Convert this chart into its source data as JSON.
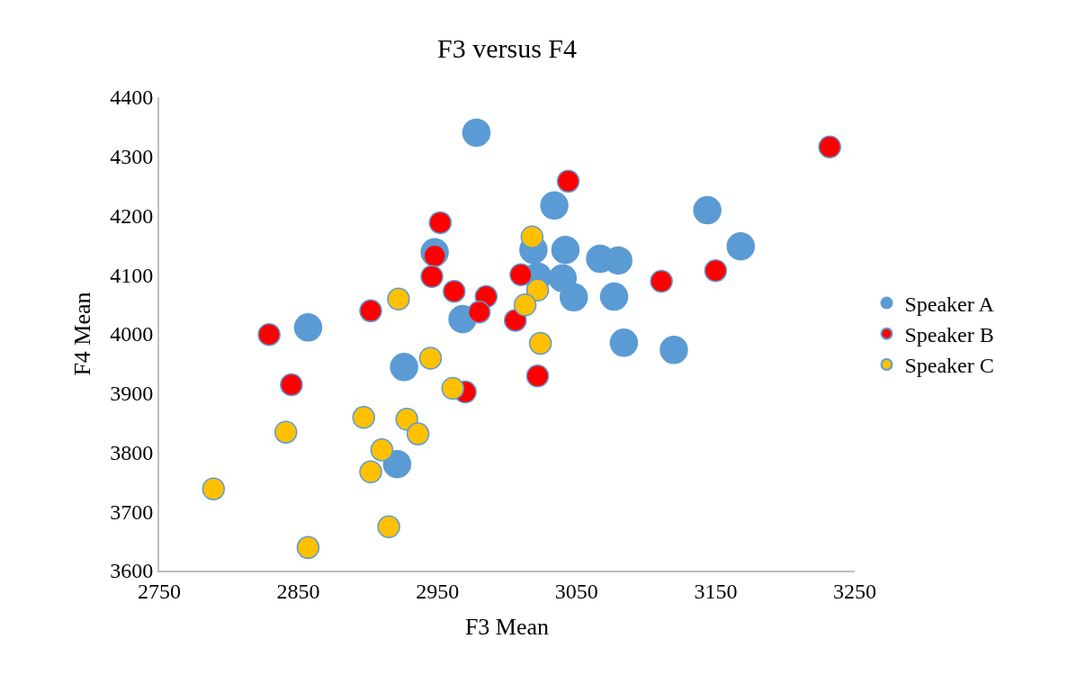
{
  "chart_data": {
    "type": "scatter",
    "title": "F3 versus F4",
    "xlabel": "F3 Mean",
    "ylabel": "F4 Mean",
    "xlim": [
      2750,
      3250
    ],
    "xticks": [
      2750,
      2850,
      2950,
      3050,
      3150,
      3250
    ],
    "ylim": [
      3600,
      4400
    ],
    "yticks": [
      3600,
      3700,
      3800,
      3900,
      4000,
      4100,
      4200,
      4300,
      4400
    ],
    "grid": false,
    "legend": "right",
    "marker": "circle",
    "series": [
      {
        "name": "Speaker A",
        "color": "#5b9bd5",
        "x": [
          2978,
          2948,
          2968,
          2857,
          3019,
          3034,
          3144,
          3168,
          3042,
          3067,
          3080,
          3022,
          3040,
          3048,
          3077,
          3084,
          3120,
          2926,
          2921
        ],
        "values": [
          4340,
          4138,
          4025,
          4011,
          4142,
          4217,
          4209,
          4148,
          4142,
          4127,
          4124,
          4097,
          4094,
          4062,
          4063,
          3985,
          3973,
          3944,
          3780
        ]
      },
      {
        "name": "Speaker B",
        "color": "#ff0000",
        "x": [
          2952,
          2948,
          2946,
          2962,
          2985,
          2980,
          2902,
          2829,
          3010,
          3006,
          3044,
          3232,
          3111,
          3150,
          2845,
          2970,
          3022
        ],
        "values": [
          4188,
          4132,
          4097,
          4072,
          4063,
          4037,
          4039,
          3999,
          4100,
          4023,
          4258,
          4316,
          4089,
          4107,
          3914,
          3902,
          3929
        ]
      },
      {
        "name": "Speaker C",
        "color": "#ffc000",
        "x": [
          2922,
          3018,
          3022,
          3013,
          3024,
          2945,
          2961,
          2897,
          2928,
          2936,
          2841,
          2910,
          2902,
          2789,
          2915,
          2857
        ],
        "values": [
          4059,
          4164,
          4074,
          4049,
          3984,
          3959,
          3908,
          3859,
          3856,
          3831,
          3834,
          3804,
          3767,
          3738,
          3674,
          3639
        ]
      }
    ]
  }
}
